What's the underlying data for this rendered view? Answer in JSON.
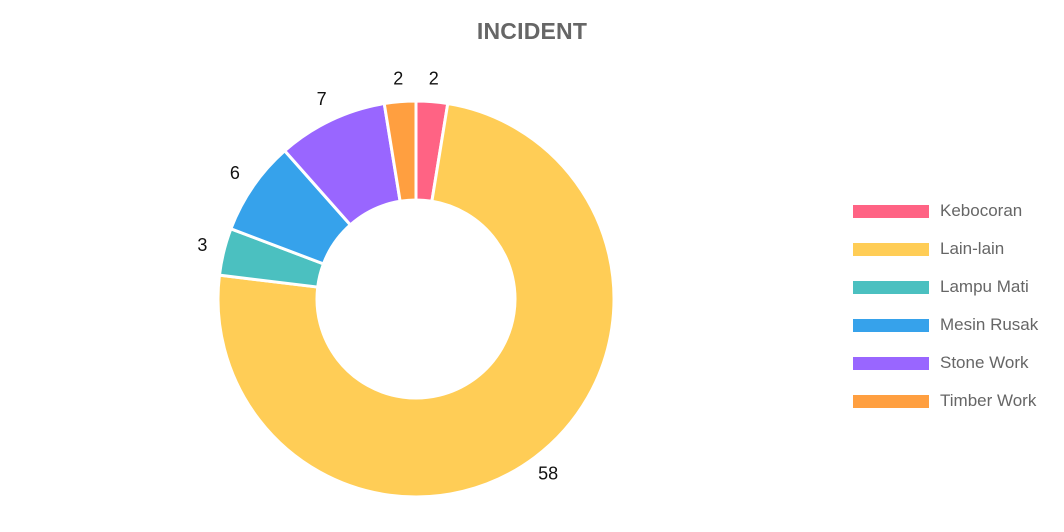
{
  "chart_data": {
    "type": "pie",
    "subtype": "doughnut",
    "title": "INCIDENT",
    "categories": [
      "Kebocoran",
      "Lain-lain",
      "Lampu Mati",
      "Mesin Rusak",
      "Stone Work",
      "Timber Work"
    ],
    "values": [
      2,
      58,
      3,
      6,
      7,
      2
    ],
    "colors": [
      "#ff6384",
      "#ffcd56",
      "#4bc0c0",
      "#36a2eb",
      "#9966ff",
      "#ff9f40"
    ],
    "legend_position": "right",
    "data_labels": true
  }
}
